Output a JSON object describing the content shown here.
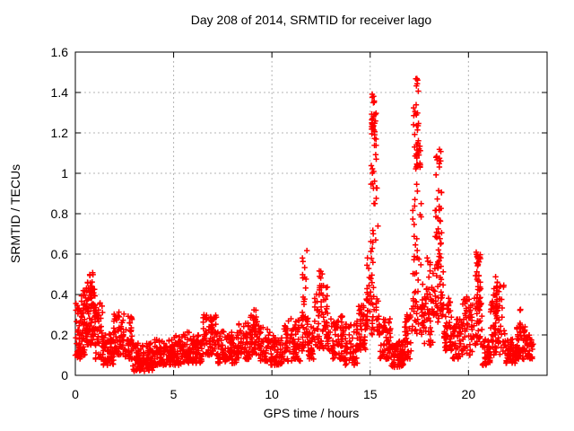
{
  "chart_data": {
    "type": "scatter",
    "title": "Day 208 of 2014, SRMTID for receiver lago",
    "xlabel": "GPS time / hours",
    "ylabel": "SRMTID / TECUs",
    "xlim": [
      0,
      24
    ],
    "ylim": [
      0,
      1.6
    ],
    "xticks": [
      0,
      5,
      10,
      15,
      20
    ],
    "xtick_labels": [
      "0",
      "5",
      "10",
      "15",
      "20"
    ],
    "yticks": [
      0,
      0.2,
      0.4,
      0.6,
      0.8,
      1,
      1.2,
      1.4,
      1.6
    ],
    "ytick_labels": [
      "0",
      "0.2",
      "0.4",
      "0.6",
      "0.8",
      "1",
      "1.2",
      "1.4",
      "1.6"
    ],
    "grid": true,
    "grid_style": "dashed",
    "legend": "none",
    "colors": {
      "series": "#ff0000",
      "grid": "#b4b4b4",
      "axis": "#000000",
      "background": "#ffffff"
    },
    "peaks": [
      {
        "t_hours": 0.8,
        "value": 0.51
      },
      {
        "t_hours": 2.2,
        "value": 0.32
      },
      {
        "t_hours": 6.8,
        "value": 0.3
      },
      {
        "t_hours": 9.1,
        "value": 0.33
      },
      {
        "t_hours": 11.7,
        "value": 0.62
      },
      {
        "t_hours": 12.5,
        "value": 0.52
      },
      {
        "t_hours": 15.15,
        "value": 1.4
      },
      {
        "t_hours": 17.35,
        "value": 1.5
      },
      {
        "t_hours": 18.5,
        "value": 1.13
      },
      {
        "t_hours": 20.5,
        "value": 0.61
      },
      {
        "t_hours": 21.4,
        "value": 0.49
      },
      {
        "t_hours": 22.7,
        "value": 0.33
      }
    ],
    "series": [
      {
        "name": "SRMTID",
        "marker": "plus",
        "color": "#ff0000",
        "bands_format": "[x_start_hr, x_end_hr, y_min_TECU, y_max_TECU, point_count]",
        "bands": [
          [
            0.0,
            0.3,
            0.08,
            0.36,
            50
          ],
          [
            0.3,
            0.55,
            0.1,
            0.42,
            40
          ],
          [
            0.55,
            1.0,
            0.15,
            0.47,
            80
          ],
          [
            0.65,
            0.9,
            0.38,
            0.51,
            14
          ],
          [
            1.0,
            1.4,
            0.08,
            0.36,
            50
          ],
          [
            1.4,
            1.95,
            0.05,
            0.22,
            60
          ],
          [
            1.95,
            2.5,
            0.1,
            0.32,
            60
          ],
          [
            2.5,
            2.9,
            0.08,
            0.3,
            40
          ],
          [
            2.9,
            4.0,
            0.02,
            0.16,
            110
          ],
          [
            4.0,
            5.0,
            0.05,
            0.18,
            100
          ],
          [
            5.0,
            5.5,
            0.05,
            0.2,
            50
          ],
          [
            5.5,
            5.9,
            0.06,
            0.22,
            40
          ],
          [
            5.9,
            6.5,
            0.06,
            0.2,
            60
          ],
          [
            6.5,
            7.2,
            0.1,
            0.3,
            70
          ],
          [
            7.2,
            8.3,
            0.06,
            0.22,
            100
          ],
          [
            8.3,
            8.9,
            0.08,
            0.26,
            55
          ],
          [
            8.9,
            9.35,
            0.1,
            0.3,
            45
          ],
          [
            9.05,
            9.25,
            0.25,
            0.335,
            6
          ],
          [
            9.35,
            9.9,
            0.07,
            0.24,
            50
          ],
          [
            9.9,
            10.6,
            0.05,
            0.2,
            65
          ],
          [
            10.6,
            11.45,
            0.07,
            0.28,
            75
          ],
          [
            11.45,
            11.85,
            0.12,
            0.3,
            30
          ],
          [
            11.55,
            11.8,
            0.3,
            0.62,
            14
          ],
          [
            11.85,
            12.15,
            0.08,
            0.25,
            30
          ],
          [
            12.15,
            12.85,
            0.12,
            0.45,
            70
          ],
          [
            12.4,
            12.65,
            0.42,
            0.52,
            8
          ],
          [
            12.85,
            13.6,
            0.08,
            0.3,
            65
          ],
          [
            13.6,
            14.35,
            0.05,
            0.28,
            70
          ],
          [
            14.35,
            14.8,
            0.12,
            0.35,
            45
          ],
          [
            14.8,
            15.0,
            0.2,
            0.5,
            15
          ],
          [
            14.82,
            14.95,
            0.3,
            0.62,
            8
          ],
          [
            15.0,
            15.5,
            0.2,
            0.45,
            35
          ],
          [
            15.02,
            15.42,
            0.45,
            1.1,
            28
          ],
          [
            15.05,
            15.3,
            1.12,
            1.32,
            26
          ],
          [
            15.08,
            15.25,
            1.33,
            1.4,
            6
          ],
          [
            15.5,
            16.05,
            0.08,
            0.28,
            55
          ],
          [
            16.05,
            16.75,
            0.04,
            0.17,
            70
          ],
          [
            16.75,
            17.1,
            0.08,
            0.3,
            35
          ],
          [
            17.1,
            17.7,
            0.2,
            0.5,
            40
          ],
          [
            17.15,
            17.6,
            0.5,
            1.0,
            22
          ],
          [
            17.25,
            17.55,
            1.02,
            1.17,
            26
          ],
          [
            17.2,
            17.5,
            1.18,
            1.37,
            12
          ],
          [
            17.3,
            17.45,
            1.4,
            1.5,
            6
          ],
          [
            17.7,
            18.25,
            0.15,
            0.45,
            45
          ],
          [
            17.75,
            18.2,
            0.3,
            0.65,
            10
          ],
          [
            18.25,
            18.75,
            0.25,
            0.55,
            40
          ],
          [
            18.3,
            18.65,
            0.55,
            0.95,
            30
          ],
          [
            18.35,
            18.6,
            0.95,
            1.13,
            10
          ],
          [
            18.75,
            19.2,
            0.12,
            0.4,
            50
          ],
          [
            19.2,
            19.7,
            0.08,
            0.28,
            45
          ],
          [
            19.7,
            20.25,
            0.1,
            0.42,
            50
          ],
          [
            20.25,
            20.7,
            0.15,
            0.45,
            40
          ],
          [
            20.35,
            20.65,
            0.3,
            0.53,
            14
          ],
          [
            20.38,
            20.62,
            0.54,
            0.61,
            16
          ],
          [
            20.7,
            21.1,
            0.05,
            0.18,
            40
          ],
          [
            21.1,
            21.85,
            0.1,
            0.45,
            70
          ],
          [
            21.2,
            21.6,
            0.3,
            0.49,
            20
          ],
          [
            21.85,
            22.45,
            0.06,
            0.18,
            60
          ],
          [
            22.45,
            22.95,
            0.08,
            0.24,
            50
          ],
          [
            22.6,
            22.8,
            0.24,
            0.33,
            5
          ],
          [
            22.95,
            23.3,
            0.08,
            0.2,
            40
          ]
        ]
      }
    ]
  }
}
